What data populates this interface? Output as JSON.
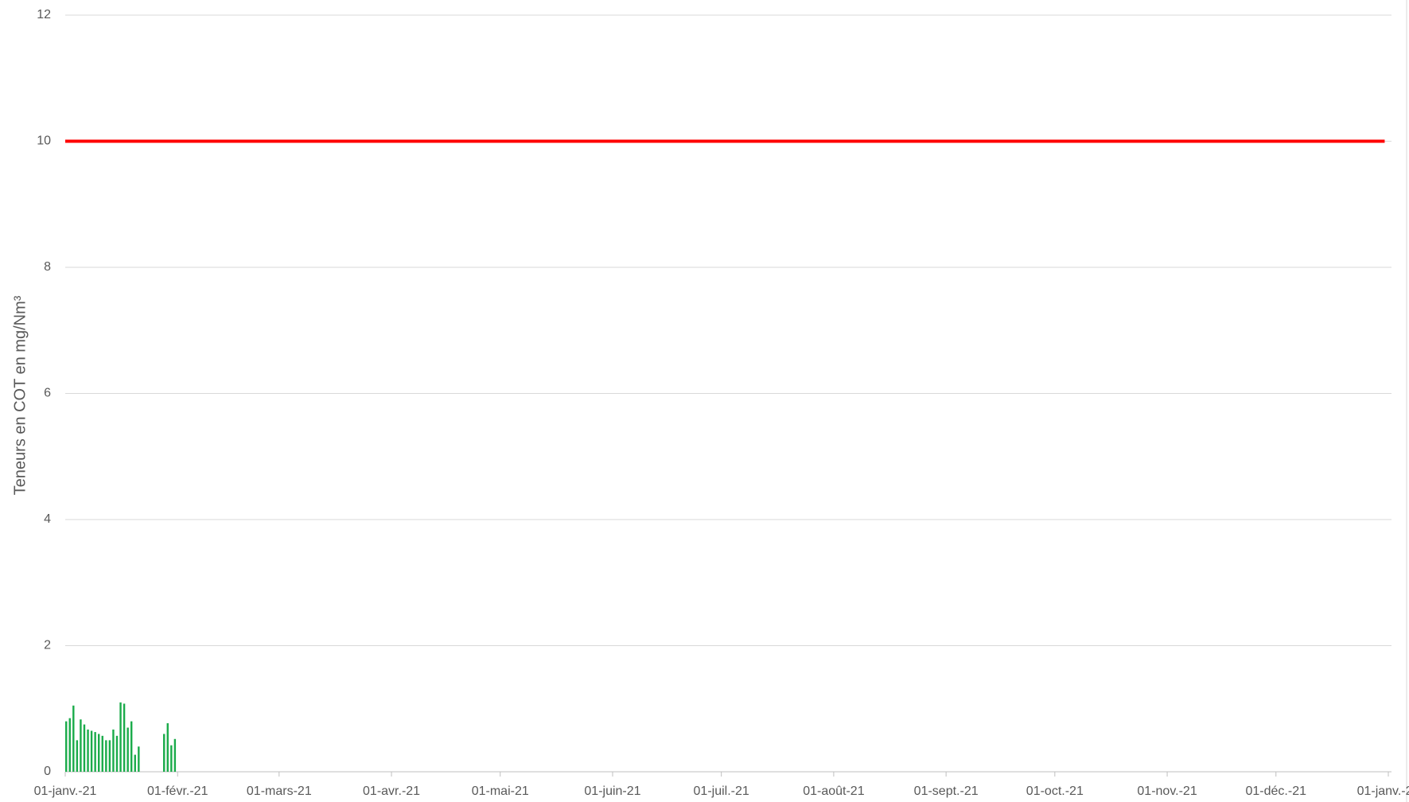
{
  "chart_data": {
    "type": "bar",
    "y_label": "Teneurs en COT en mg/Nm³",
    "ylim": [
      0,
      12
    ],
    "yticks": [
      0,
      2,
      4,
      6,
      8,
      10,
      12
    ],
    "grid": true,
    "xlim": [
      "2021-01-01",
      "2022-01-01"
    ],
    "xticks": [
      {
        "value": "2021-01-01",
        "label": "01-janv.-21"
      },
      {
        "value": "2021-02-01",
        "label": "01-févr.-21"
      },
      {
        "value": "2021-03-01",
        "label": "01-mars-21"
      },
      {
        "value": "2021-04-01",
        "label": "01-avr.-21"
      },
      {
        "value": "2021-05-01",
        "label": "01-mai-21"
      },
      {
        "value": "2021-06-01",
        "label": "01-juin-21"
      },
      {
        "value": "2021-07-01",
        "label": "01-juil.-21"
      },
      {
        "value": "2021-08-01",
        "label": "01-août-21"
      },
      {
        "value": "2021-09-01",
        "label": "01-sept.-21"
      },
      {
        "value": "2021-10-01",
        "label": "01-oct.-21"
      },
      {
        "value": "2021-11-01",
        "label": "01-nov.-21"
      },
      {
        "value": "2021-12-01",
        "label": "01-déc.-21"
      },
      {
        "value": "2022-01-01",
        "label": "01-janv.-22"
      }
    ],
    "series": [
      {
        "type": "bar",
        "color": "#1aab4a",
        "x": [
          "2021-01-01",
          "2021-01-02",
          "2021-01-03",
          "2021-01-04",
          "2021-01-05",
          "2021-01-06",
          "2021-01-07",
          "2021-01-08",
          "2021-01-09",
          "2021-01-10",
          "2021-01-11",
          "2021-01-12",
          "2021-01-13",
          "2021-01-14",
          "2021-01-15",
          "2021-01-16",
          "2021-01-17",
          "2021-01-18",
          "2021-01-19",
          "2021-01-20",
          "2021-01-21",
          "2021-01-28",
          "2021-01-29",
          "2021-01-30",
          "2021-01-31"
        ],
        "values": [
          0.8,
          0.85,
          1.05,
          0.5,
          0.83,
          0.75,
          0.67,
          0.65,
          0.63,
          0.6,
          0.57,
          0.5,
          0.5,
          0.67,
          0.57,
          1.1,
          1.08,
          0.7,
          0.8,
          0.27,
          0.4,
          0.6,
          0.77,
          0.42,
          0.52
        ]
      },
      {
        "type": "line",
        "color": "#ff0000",
        "x": [
          "2021-01-01",
          "2021-12-31"
        ],
        "values": [
          10,
          10
        ]
      }
    ]
  }
}
